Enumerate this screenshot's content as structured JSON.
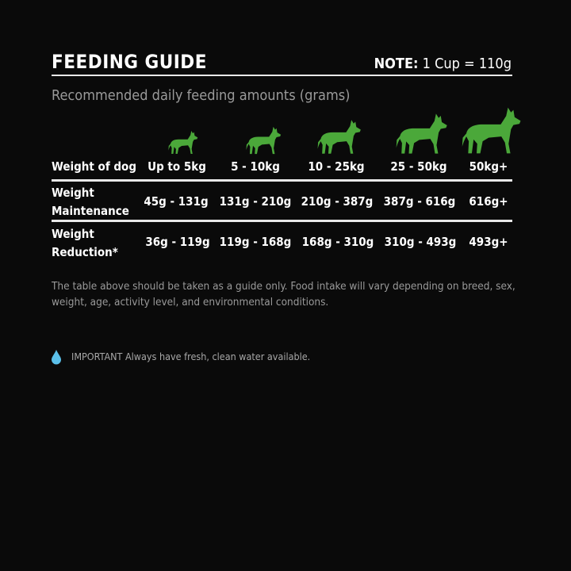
{
  "header": {
    "title": "FEEDING GUIDE",
    "note_label": "NOTE:",
    "note_value": "1 Cup = 110g"
  },
  "subtitle": "Recommended daily feeding amounts (grams)",
  "accent_color": "#4ba83a",
  "table": {
    "columns": [
      "Weight of dog",
      "Up to 5kg",
      "5 - 10kg",
      "10 - 25kg",
      "25 - 50kg",
      "50kg+"
    ],
    "rows": [
      {
        "label_line1": "Weight",
        "label_line2": "Maintenance",
        "values": [
          "45g - 131g",
          "131g - 210g",
          "210g - 387g",
          "387g - 616g",
          "616g+"
        ]
      },
      {
        "label_line1": "Weight",
        "label_line2": "Reduction*",
        "values": [
          "36g - 119g",
          "119g - 168g",
          "168g - 310g",
          "310g - 493g",
          "493g+"
        ]
      }
    ],
    "column_icons": [
      "dog-silhouette-icon",
      "dog-silhouette-icon",
      "dog-silhouette-icon",
      "dog-silhouette-icon",
      "dog-silhouette-icon"
    ]
  },
  "disclaimer": "The table above should be taken as a guide only. Food intake will vary depending on breed, sex, weight, age, activity level, and environmental conditions.",
  "important": {
    "icon": "water-drop-icon",
    "text": "IMPORTANT Always have fresh, clean water available."
  }
}
